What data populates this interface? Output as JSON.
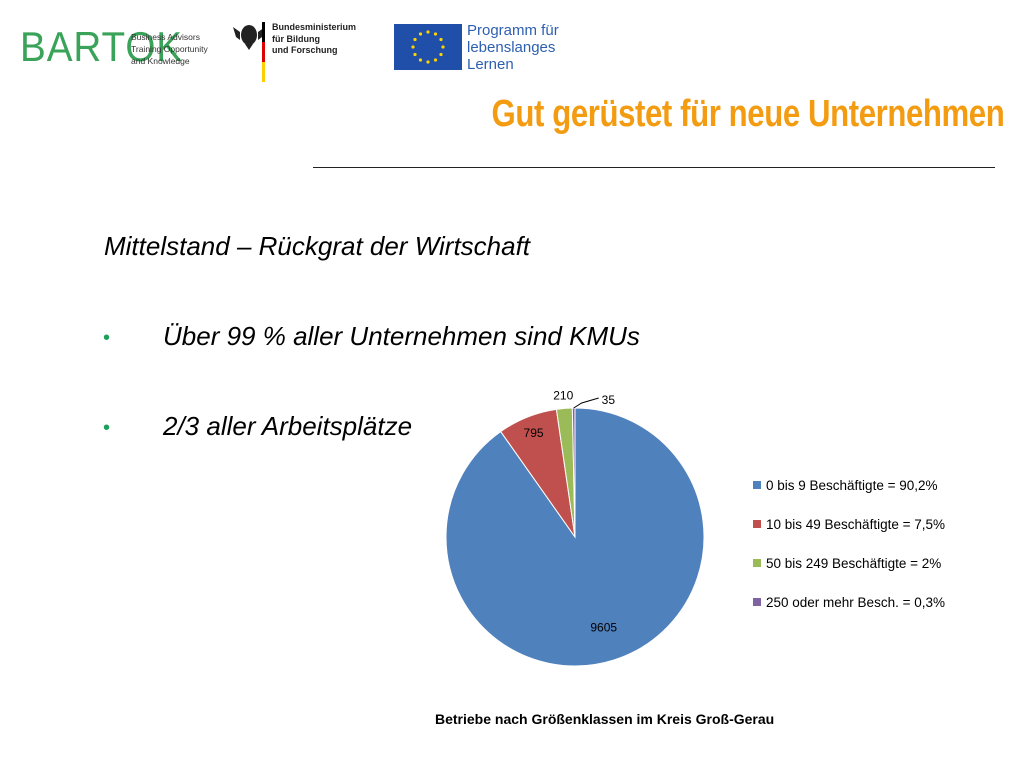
{
  "logos": {
    "bartok": {
      "name": "BARTOK",
      "tagline": [
        "Business Advisors",
        "Training Opportunity",
        "and Knowledge"
      ]
    },
    "bmbf": {
      "lines": [
        "Bundesministerium",
        "für Bildung",
        "und Forschung"
      ]
    },
    "eu_program": {
      "lines": [
        "Programm für",
        "lebenslanges",
        "Lernen"
      ]
    }
  },
  "slide": {
    "title": "Gut gerüstet für neue Unternehmen",
    "heading": "Mittelstand – Rückgrat der Wirtschaft",
    "bullets": [
      "Über 99 % aller Unternehmen sind KMUs",
      "2/3 aller Arbeitsplätze"
    ],
    "bullet_glyph": "•"
  },
  "chart_data": {
    "type": "pie",
    "title": "Betriebe nach Größenklassen im Kreis Groß-Gerau",
    "legend_position": "right",
    "slices": [
      {
        "label": "0 bis 9 Beschäftigte = 90,2%",
        "value": 9605,
        "color": "#4f81bd"
      },
      {
        "label": "10 bis 49 Beschäftigte = 7,5%",
        "value": 795,
        "color": "#c0504d"
      },
      {
        "label": "50 bis 249 Beschäftigte = 2%",
        "value": 210,
        "color": "#9bbb59"
      },
      {
        "label": "250 oder mehr Besch. = 0,3%",
        "value": 35,
        "color": "#8064a2"
      }
    ]
  },
  "colors": {
    "title": "#f39c12",
    "bullet": "#1fa05a",
    "bartok_green": "#3aa35a",
    "eu_blue": "#1f4fa8",
    "eu_star": "#ffd200"
  }
}
